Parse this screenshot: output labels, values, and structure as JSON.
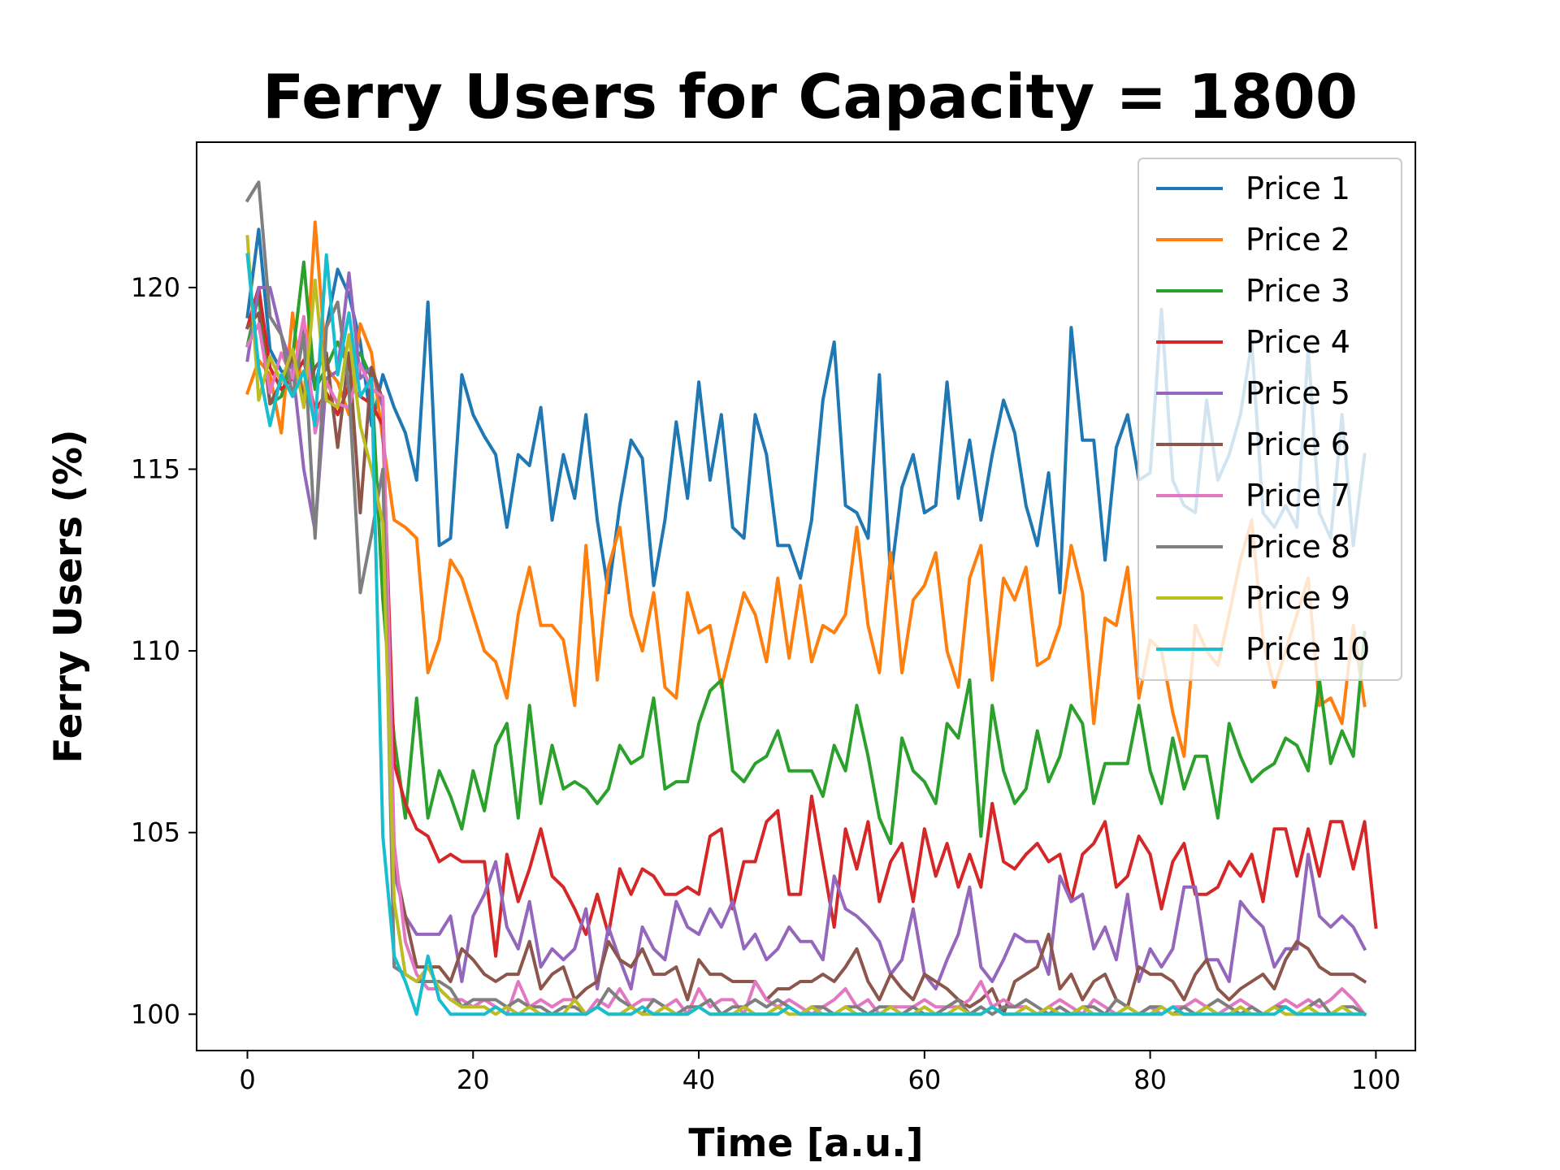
{
  "chart_data": {
    "type": "line",
    "title": "Ferry Users for Capacity = 1800",
    "xlabel": "Time [a.u.]",
    "ylabel": "Ferry Users (%)",
    "xlim": [
      -4.5,
      103.5
    ],
    "ylim": [
      99.0,
      124.0
    ],
    "xticks": [
      0,
      20,
      40,
      60,
      80,
      100
    ],
    "yticks": [
      100,
      105,
      110,
      115,
      120
    ],
    "grid": false,
    "legend_position": "top-right",
    "series": [
      {
        "name": "Price 1",
        "color": "#1f77b4",
        "values": [
          119.2,
          121.6,
          118.3,
          117.7,
          117.6,
          118.9,
          117.2,
          118.9,
          120.5,
          119.8,
          118.5,
          116.2,
          117.6,
          116.7,
          116.0,
          114.7,
          119.6,
          112.9,
          113.1,
          117.6,
          116.5,
          115.9,
          115.4,
          113.4,
          115.4,
          115.1,
          116.7,
          113.6,
          115.4,
          114.2,
          116.5,
          113.6,
          111.6,
          114.0,
          115.8,
          115.3,
          111.8,
          113.6,
          116.3,
          114.2,
          117.4,
          114.7,
          116.5,
          113.4,
          113.1,
          116.5,
          115.4,
          112.9,
          112.9,
          112.0,
          113.6,
          116.9,
          118.5,
          114.0,
          113.8,
          113.1,
          117.6,
          112.0,
          114.5,
          115.4,
          113.8,
          114.0,
          117.4,
          114.2,
          115.8,
          113.6,
          115.4,
          116.9,
          116.0,
          114.0,
          112.9,
          114.9,
          111.6,
          118.9,
          115.8,
          115.8,
          112.5,
          115.6,
          116.5,
          114.7,
          114.9,
          119.4,
          114.7,
          114.0,
          113.8,
          116.9,
          114.7,
          115.4,
          116.5,
          118.5,
          113.8,
          113.4,
          114.0,
          113.4,
          118.3,
          113.8,
          113.1,
          116.5,
          112.9,
          115.4
        ]
      },
      {
        "name": "Price 2",
        "color": "#ff7f0e",
        "values": [
          117.1,
          118.0,
          117.6,
          116.0,
          119.3,
          116.8,
          121.8,
          117.8,
          117.4,
          116.5,
          119.0,
          118.2,
          115.8,
          113.6,
          113.4,
          113.1,
          109.4,
          110.3,
          112.5,
          112.0,
          111.0,
          110.0,
          109.7,
          108.7,
          111.0,
          112.3,
          110.7,
          110.7,
          110.3,
          108.5,
          112.9,
          109.2,
          112.3,
          113.4,
          111.0,
          110.0,
          111.6,
          109.0,
          108.7,
          111.6,
          110.5,
          110.7,
          109.0,
          110.3,
          111.6,
          111.0,
          109.7,
          112.0,
          109.8,
          111.8,
          109.7,
          110.7,
          110.5,
          111.0,
          113.4,
          110.7,
          109.4,
          112.7,
          109.4,
          111.4,
          111.8,
          112.7,
          110.0,
          109.0,
          112.0,
          112.9,
          109.2,
          112.0,
          111.4,
          112.3,
          109.6,
          109.8,
          110.7,
          112.9,
          111.6,
          108.0,
          110.9,
          110.7,
          112.3,
          108.7,
          110.3,
          110.0,
          108.3,
          107.1,
          110.7,
          110.0,
          109.6,
          111.0,
          112.5,
          113.6,
          110.3,
          109.0,
          110.0,
          111.0,
          112.0,
          108.5,
          108.7,
          108.0,
          110.7,
          108.5
        ]
      },
      {
        "name": "Price 3",
        "color": "#2ca02c",
        "values": [
          118.4,
          119.8,
          116.8,
          117.0,
          118.1,
          120.7,
          117.2,
          117.8,
          118.5,
          117.8,
          118.2,
          117.5,
          111.4,
          107.6,
          105.4,
          108.7,
          105.4,
          106.7,
          106.0,
          105.1,
          106.7,
          105.6,
          107.4,
          108.0,
          105.4,
          108.5,
          105.8,
          107.4,
          106.2,
          106.4,
          106.2,
          105.8,
          106.2,
          107.4,
          106.9,
          107.1,
          108.7,
          106.2,
          106.4,
          106.4,
          108.0,
          108.9,
          109.2,
          106.7,
          106.4,
          106.9,
          107.1,
          107.8,
          106.7,
          106.7,
          106.7,
          106.0,
          107.4,
          106.7,
          108.5,
          107.1,
          105.4,
          104.7,
          107.6,
          106.7,
          106.4,
          105.8,
          108.0,
          107.6,
          109.2,
          104.9,
          108.5,
          106.7,
          105.8,
          106.2,
          107.8,
          106.4,
          107.1,
          108.5,
          108.0,
          105.8,
          106.9,
          106.9,
          106.9,
          108.5,
          106.7,
          105.8,
          107.6,
          106.2,
          107.1,
          107.1,
          105.4,
          108.0,
          107.1,
          106.4,
          106.7,
          106.9,
          107.6,
          107.4,
          106.7,
          109.2,
          106.9,
          107.8,
          107.1,
          110.5
        ]
      },
      {
        "name": "Price 4",
        "color": "#d62728",
        "values": [
          118.9,
          120.0,
          117.8,
          117.2,
          117.5,
          118.0,
          116.6,
          117.1,
          116.5,
          117.3,
          117.0,
          116.8,
          116.2,
          106.9,
          105.8,
          105.1,
          104.9,
          104.2,
          104.4,
          104.2,
          104.2,
          104.2,
          101.6,
          104.4,
          103.1,
          104.0,
          105.1,
          103.8,
          103.5,
          102.9,
          102.2,
          103.3,
          102.2,
          104.0,
          103.3,
          104.0,
          103.8,
          103.3,
          103.3,
          103.5,
          103.3,
          104.9,
          105.1,
          102.9,
          104.2,
          104.2,
          105.3,
          105.6,
          103.3,
          103.3,
          106.0,
          104.2,
          102.4,
          105.1,
          104.0,
          105.3,
          103.1,
          104.2,
          104.7,
          103.1,
          105.1,
          103.8,
          104.7,
          103.5,
          104.4,
          103.5,
          105.8,
          104.2,
          104.0,
          104.4,
          104.7,
          104.2,
          104.4,
          103.1,
          104.4,
          104.7,
          105.3,
          103.5,
          103.8,
          104.9,
          104.4,
          102.9,
          104.2,
          104.7,
          103.3,
          103.3,
          103.5,
          104.2,
          103.8,
          104.4,
          103.1,
          105.1,
          105.1,
          103.8,
          105.1,
          103.8,
          105.3,
          105.3,
          104.0,
          105.3,
          102.4
        ]
      },
      {
        "name": "Price 5",
        "color": "#9467bd",
        "values": [
          118.0,
          120.0,
          120.0,
          118.7,
          117.8,
          115.0,
          113.3,
          117.5,
          117.7,
          120.4,
          117.5,
          117.8,
          116.7,
          103.9,
          102.7,
          102.2,
          102.2,
          102.2,
          102.7,
          100.9,
          102.7,
          103.3,
          104.2,
          102.4,
          101.8,
          103.1,
          101.3,
          101.8,
          101.5,
          101.8,
          102.9,
          100.7,
          102.4,
          101.5,
          100.7,
          102.4,
          101.8,
          101.5,
          103.1,
          102.4,
          102.2,
          102.9,
          102.4,
          103.1,
          101.8,
          102.2,
          101.5,
          101.8,
          102.4,
          102.0,
          102.0,
          101.5,
          103.8,
          102.9,
          102.7,
          102.4,
          102.0,
          101.1,
          101.5,
          102.9,
          101.1,
          100.7,
          101.5,
          102.2,
          103.5,
          101.3,
          100.9,
          101.5,
          102.2,
          102.0,
          102.0,
          101.1,
          103.8,
          103.1,
          103.3,
          101.8,
          102.4,
          101.5,
          103.3,
          100.9,
          101.8,
          101.3,
          101.8,
          103.5,
          103.5,
          101.5,
          101.5,
          100.9,
          103.1,
          102.7,
          102.4,
          101.3,
          101.8,
          101.8,
          104.4,
          102.7,
          102.4,
          102.7,
          102.4,
          101.8
        ]
      },
      {
        "name": "Price 6",
        "color": "#8c564b",
        "values": [
          118.9,
          119.3,
          116.8,
          117.4,
          118.1,
          117.0,
          117.8,
          118.2,
          115.6,
          118.2,
          113.8,
          117.8,
          116.9,
          104.2,
          102.7,
          101.3,
          101.3,
          101.3,
          100.9,
          101.8,
          101.5,
          101.1,
          100.9,
          101.1,
          101.1,
          102.0,
          100.7,
          101.1,
          101.3,
          100.4,
          100.7,
          100.9,
          102.0,
          101.5,
          101.3,
          101.8,
          101.1,
          101.1,
          101.3,
          100.4,
          101.5,
          101.1,
          101.1,
          100.9,
          100.9,
          100.9,
          100.4,
          100.7,
          100.7,
          100.9,
          100.9,
          101.1,
          100.9,
          101.3,
          101.8,
          100.9,
          100.4,
          101.1,
          100.7,
          100.4,
          101.1,
          100.9,
          100.7,
          100.4,
          100.2,
          100.4,
          100.7,
          100.0,
          100.9,
          101.1,
          101.3,
          102.2,
          100.7,
          101.1,
          100.4,
          100.9,
          101.1,
          100.4,
          100.2,
          101.3,
          101.1,
          101.1,
          100.9,
          100.4,
          101.1,
          101.5,
          100.7,
          100.4,
          100.7,
          100.9,
          101.1,
          100.7,
          101.5,
          102.0,
          101.8,
          101.3,
          101.1,
          101.1,
          101.1,
          100.9
        ]
      },
      {
        "name": "Price 7",
        "color": "#e377c2",
        "values": [
          118.4,
          119.0,
          117.1,
          118.2,
          117.5,
          119.2,
          116.0,
          117.4,
          116.8,
          116.7,
          117.9,
          117.2,
          117.0,
          104.7,
          102.0,
          101.1,
          100.7,
          100.7,
          100.4,
          100.4,
          100.2,
          100.4,
          100.2,
          100.0,
          100.9,
          100.2,
          100.4,
          100.2,
          100.4,
          100.4,
          100.0,
          100.4,
          100.2,
          100.7,
          100.2,
          100.4,
          100.4,
          100.2,
          100.4,
          100.0,
          100.7,
          100.2,
          100.4,
          100.4,
          100.0,
          100.9,
          100.4,
          100.2,
          100.4,
          100.2,
          100.0,
          100.2,
          100.4,
          100.7,
          100.2,
          100.4,
          100.0,
          100.2,
          100.2,
          100.2,
          100.4,
          100.2,
          100.2,
          100.2,
          100.4,
          100.9,
          100.2,
          100.4,
          100.2,
          100.2,
          100.0,
          100.2,
          100.4,
          100.2,
          100.0,
          100.4,
          100.2,
          100.0,
          100.2,
          100.0,
          100.2,
          100.0,
          100.2,
          100.2,
          100.4,
          100.2,
          100.0,
          100.2,
          100.4,
          100.2,
          100.0,
          100.2,
          100.4,
          100.2,
          100.4,
          100.2,
          100.4,
          100.7,
          100.4,
          100.0
        ]
      },
      {
        "name": "Price 8",
        "color": "#7f7f7f",
        "values": [
          122.4,
          122.9,
          119.2,
          118.7,
          117.0,
          118.7,
          113.1,
          118.9,
          119.6,
          117.2,
          111.6,
          113.2,
          115.0,
          101.3,
          101.1,
          100.9,
          100.9,
          100.9,
          100.7,
          100.2,
          100.4,
          100.4,
          100.4,
          100.2,
          100.4,
          100.2,
          100.2,
          100.0,
          100.2,
          100.2,
          100.0,
          100.2,
          100.7,
          100.4,
          100.2,
          100.0,
          100.4,
          100.2,
          100.0,
          100.2,
          100.2,
          100.4,
          100.0,
          100.2,
          100.2,
          100.4,
          100.2,
          100.4,
          100.2,
          100.0,
          100.2,
          100.2,
          100.0,
          100.2,
          100.2,
          100.0,
          100.2,
          100.2,
          100.0,
          100.2,
          100.0,
          100.0,
          100.2,
          100.4,
          100.0,
          100.2,
          100.0,
          100.2,
          100.2,
          100.4,
          100.2,
          100.0,
          100.2,
          100.0,
          100.2,
          100.2,
          100.0,
          100.4,
          100.2,
          100.0,
          100.2,
          100.2,
          100.0,
          100.2,
          100.0,
          100.2,
          100.4,
          100.2,
          100.0,
          100.2,
          100.0,
          100.2,
          100.2,
          100.0,
          100.2,
          100.4,
          100.0,
          100.2,
          100.2,
          100.0
        ]
      },
      {
        "name": "Price 9",
        "color": "#bcbd22",
        "values": [
          121.4,
          116.9,
          118.1,
          117.4,
          118.3,
          116.7,
          120.2,
          116.9,
          116.7,
          118.7,
          116.2,
          115.0,
          113.5,
          103.1,
          101.1,
          100.9,
          101.3,
          100.7,
          100.4,
          100.2,
          100.2,
          100.2,
          100.0,
          100.2,
          100.0,
          100.2,
          100.0,
          100.0,
          100.0,
          100.4,
          100.0,
          100.2,
          100.0,
          100.0,
          100.2,
          100.0,
          100.0,
          100.2,
          100.0,
          100.0,
          100.2,
          100.0,
          100.0,
          100.0,
          100.2,
          100.0,
          100.0,
          100.2,
          100.0,
          100.0,
          100.2,
          100.0,
          100.0,
          100.2,
          100.0,
          100.0,
          100.0,
          100.2,
          100.0,
          100.0,
          100.2,
          100.0,
          100.0,
          100.2,
          100.0,
          100.0,
          100.2,
          100.0,
          100.0,
          100.2,
          100.0,
          100.2,
          100.0,
          100.0,
          100.2,
          100.0,
          100.0,
          100.0,
          100.2,
          100.0,
          100.0,
          100.2,
          100.0,
          100.0,
          100.0,
          100.2,
          100.0,
          100.0,
          100.2,
          100.0,
          100.0,
          100.2,
          100.0,
          100.0,
          100.2,
          100.0,
          100.0,
          100.2,
          100.0,
          100.0
        ]
      },
      {
        "name": "Price 10",
        "color": "#17becf",
        "values": [
          120.9,
          117.8,
          116.2,
          117.6,
          117.0,
          117.7,
          116.2,
          120.9,
          117.6,
          119.3,
          117.0,
          117.5,
          104.9,
          101.6,
          100.9,
          100.0,
          101.6,
          100.4,
          100.0,
          100.0,
          100.0,
          100.0,
          100.2,
          100.0,
          100.0,
          100.0,
          100.0,
          100.0,
          100.0,
          100.0,
          100.0,
          100.2,
          100.0,
          100.0,
          100.0,
          100.2,
          100.0,
          100.0,
          100.0,
          100.0,
          100.2,
          100.0,
          100.0,
          100.0,
          100.0,
          100.0,
          100.0,
          100.0,
          100.2,
          100.0,
          100.0,
          100.0,
          100.0,
          100.0,
          100.0,
          100.0,
          100.0,
          100.0,
          100.0,
          100.0,
          100.0,
          100.0,
          100.0,
          100.0,
          100.0,
          100.0,
          100.2,
          100.0,
          100.0,
          100.0,
          100.0,
          100.0,
          100.0,
          100.0,
          100.0,
          100.0,
          100.0,
          100.0,
          100.0,
          100.0,
          100.0,
          100.0,
          100.2,
          100.0,
          100.0,
          100.0,
          100.0,
          100.0,
          100.0,
          100.0,
          100.0,
          100.0,
          100.2,
          100.0,
          100.0,
          100.0,
          100.0,
          100.0,
          100.0,
          100.0
        ]
      }
    ]
  }
}
